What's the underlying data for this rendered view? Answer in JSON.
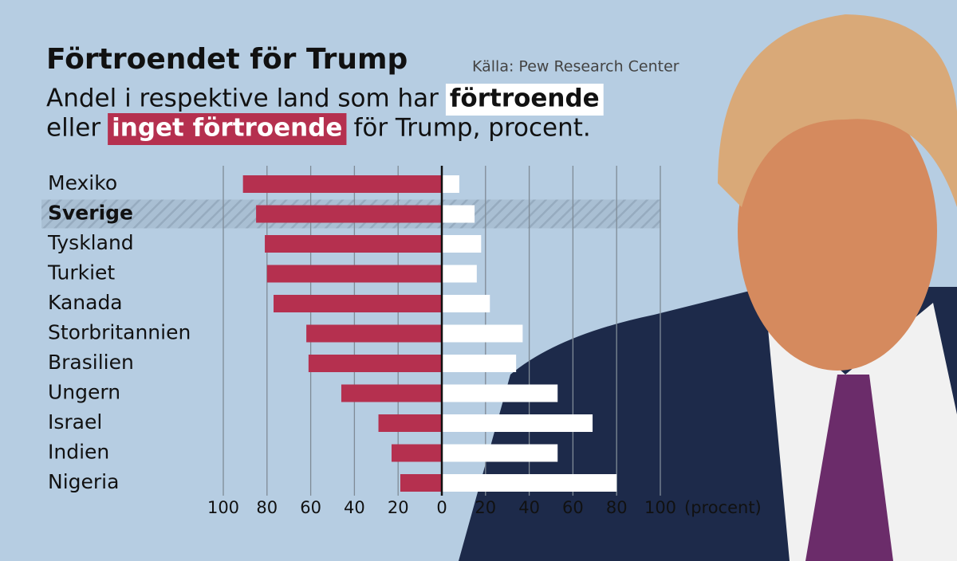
{
  "chart_data": {
    "type": "diverging-bar",
    "title": "Förtroendet för Trump",
    "source": "Källa: Pew Research Center",
    "subtitle": [
      "Andel i respektive land som har",
      "eller",
      "för Trump, procent."
    ],
    "categories": [
      "Mexiko",
      "Sverige",
      "Tyskland",
      "Turkiet",
      "Kanada",
      "Storbritannien",
      "Brasilien",
      "Ungern",
      "Israel",
      "Indien",
      "Nigeria"
    ],
    "highlight_index": 1,
    "series": [
      {
        "name": "förtroende",
        "color": "#ffffff",
        "side": "right",
        "values": [
          8,
          15,
          18,
          16,
          22,
          37,
          34,
          53,
          69,
          53,
          80
        ]
      },
      {
        "name": "inget förtroende",
        "color": "#b5304f",
        "side": "left",
        "values": [
          91,
          85,
          81,
          80,
          77,
          62,
          61,
          46,
          29,
          23,
          19
        ]
      }
    ],
    "xlim": [
      -100,
      100
    ],
    "xticks": [
      {
        "value": -100,
        "label": "100"
      },
      {
        "value": -80,
        "label": "80"
      },
      {
        "value": -60,
        "label": "60"
      },
      {
        "value": -40,
        "label": "40"
      },
      {
        "value": -20,
        "label": "20"
      },
      0,
      20,
      40,
      60,
      80,
      100
    ],
    "x_unit_label": "(procent)",
    "grid": true
  }
}
